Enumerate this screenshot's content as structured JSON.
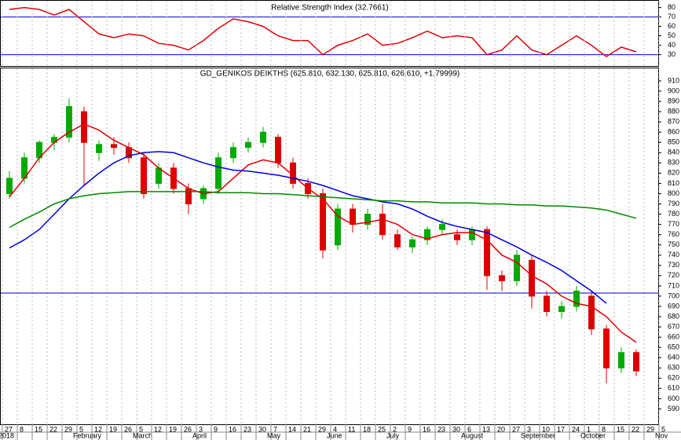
{
  "chart_data": [
    {
      "type": "line",
      "title": "Relative Strength Index (32.7661)",
      "values": [
        78,
        80,
        78,
        72,
        78,
        65,
        52,
        48,
        52,
        50,
        42,
        40,
        35,
        45,
        58,
        68,
        65,
        60,
        50,
        45,
        45,
        30,
        40,
        45,
        52,
        40,
        42,
        48,
        55,
        48,
        50,
        48,
        30,
        35,
        50,
        35,
        30,
        40,
        50,
        40,
        28,
        38,
        33,
        null,
        null
      ],
      "color": "#e00000",
      "ylim": [
        18,
        88
      ],
      "yticks": [
        30,
        40,
        50,
        60,
        70,
        80
      ],
      "levels": [
        30,
        70
      ],
      "level_color": "#0000cc"
    },
    {
      "type": "candlestick",
      "title": "GD_GENIKOS DEIKTHS (625.810, 632.130, 625.810, 626.610, +1.79999)",
      "categories": [
        "27",
        "8",
        "15",
        "22",
        "29",
        "5",
        "12",
        "19",
        "26",
        "5",
        "12",
        "19",
        "26",
        "3",
        "9",
        "16",
        "23",
        "30",
        "7",
        "14",
        "21",
        "29",
        "4",
        "11",
        "18",
        "25",
        "2",
        "9",
        "16",
        "23",
        "30",
        "6",
        "13",
        "20",
        "27",
        "3",
        "10",
        "17",
        "24",
        "1",
        "8",
        "15",
        "22",
        "29",
        "5"
      ],
      "month_labels": [
        "2018",
        null,
        null,
        null,
        null,
        "February",
        null,
        null,
        null,
        "March",
        null,
        null,
        null,
        "April",
        null,
        null,
        null,
        null,
        "May",
        null,
        null,
        null,
        "June",
        null,
        null,
        null,
        "July",
        null,
        null,
        null,
        null,
        "August",
        null,
        null,
        null,
        "September",
        null,
        null,
        null,
        "October",
        null,
        null,
        null,
        null,
        "Nov"
      ],
      "open": [
        800,
        815,
        835,
        850,
        855,
        880,
        840,
        848,
        845,
        835,
        810,
        825,
        805,
        795,
        805,
        835,
        845,
        850,
        855,
        830,
        810,
        800,
        750,
        785,
        770,
        780,
        760,
        748,
        755,
        765,
        760,
        755,
        765,
        720,
        715,
        735,
        700,
        685,
        690,
        700,
        668,
        630,
        645,
        null,
        null
      ],
      "high": [
        822,
        840,
        852,
        858,
        893,
        885,
        852,
        855,
        850,
        840,
        830,
        830,
        810,
        808,
        840,
        850,
        855,
        865,
        858,
        835,
        815,
        805,
        790,
        790,
        785,
        790,
        765,
        758,
        768,
        775,
        765,
        768,
        768,
        725,
        745,
        740,
        705,
        695,
        710,
        705,
        672,
        650,
        648,
        null,
        null
      ],
      "low": [
        795,
        810,
        830,
        842,
        850,
        808,
        832,
        838,
        830,
        795,
        805,
        800,
        780,
        790,
        800,
        830,
        840,
        845,
        825,
        805,
        795,
        737,
        745,
        762,
        765,
        755,
        745,
        742,
        750,
        760,
        750,
        750,
        706,
        705,
        710,
        688,
        680,
        678,
        685,
        662,
        615,
        625,
        622,
        null,
        null
      ],
      "close": [
        815,
        835,
        850,
        855,
        885,
        850,
        848,
        845,
        835,
        800,
        825,
        805,
        790,
        805,
        835,
        845,
        850,
        860,
        830,
        810,
        800,
        745,
        785,
        770,
        780,
        760,
        748,
        755,
        765,
        770,
        755,
        765,
        720,
        715,
        740,
        700,
        685,
        690,
        705,
        668,
        630,
        645,
        627,
        null,
        null
      ],
      "up_color": "#00aa00",
      "down_color": "#dd0000",
      "series": [
        {
          "color": "#e00000",
          "values": [
            797,
            815,
            835,
            850,
            860,
            868,
            862,
            852,
            845,
            838,
            825,
            815,
            805,
            800,
            802,
            815,
            828,
            833,
            830,
            818,
            805,
            795,
            778,
            770,
            772,
            775,
            770,
            760,
            756,
            760,
            762,
            762,
            755,
            740,
            733,
            720,
            712,
            700,
            693,
            690,
            680,
            665,
            655,
            null,
            null
          ]
        },
        {
          "color": "#0000dd",
          "values": [
            747,
            755,
            765,
            780,
            795,
            808,
            820,
            830,
            837,
            840,
            841,
            840,
            835,
            830,
            826,
            823,
            822,
            820,
            818,
            815,
            812,
            808,
            803,
            798,
            795,
            792,
            790,
            785,
            778,
            772,
            768,
            765,
            762,
            755,
            748,
            740,
            733,
            725,
            715,
            705,
            693,
            null,
            null,
            null,
            null
          ]
        },
        {
          "color": "#008800",
          "values": [
            767,
            775,
            782,
            790,
            795,
            798,
            800,
            801,
            802,
            802,
            802,
            802,
            802,
            802,
            801,
            801,
            801,
            800,
            800,
            799,
            798,
            797,
            796,
            795,
            794,
            793,
            793,
            792,
            792,
            791,
            791,
            791,
            790,
            790,
            789,
            789,
            788,
            788,
            787,
            786,
            784,
            780,
            776,
            null,
            null
          ]
        }
      ],
      "ylim": [
        575,
        923
      ],
      "yticks": [
        590,
        600,
        610,
        620,
        630,
        640,
        650,
        660,
        670,
        680,
        690,
        700,
        710,
        720,
        730,
        740,
        750,
        760,
        770,
        780,
        790,
        800,
        810,
        820,
        830,
        840,
        850,
        860,
        870,
        880,
        890,
        900,
        910
      ],
      "levels": [
        703
      ],
      "level_color": "#0000cc",
      "grid": true
    }
  ]
}
